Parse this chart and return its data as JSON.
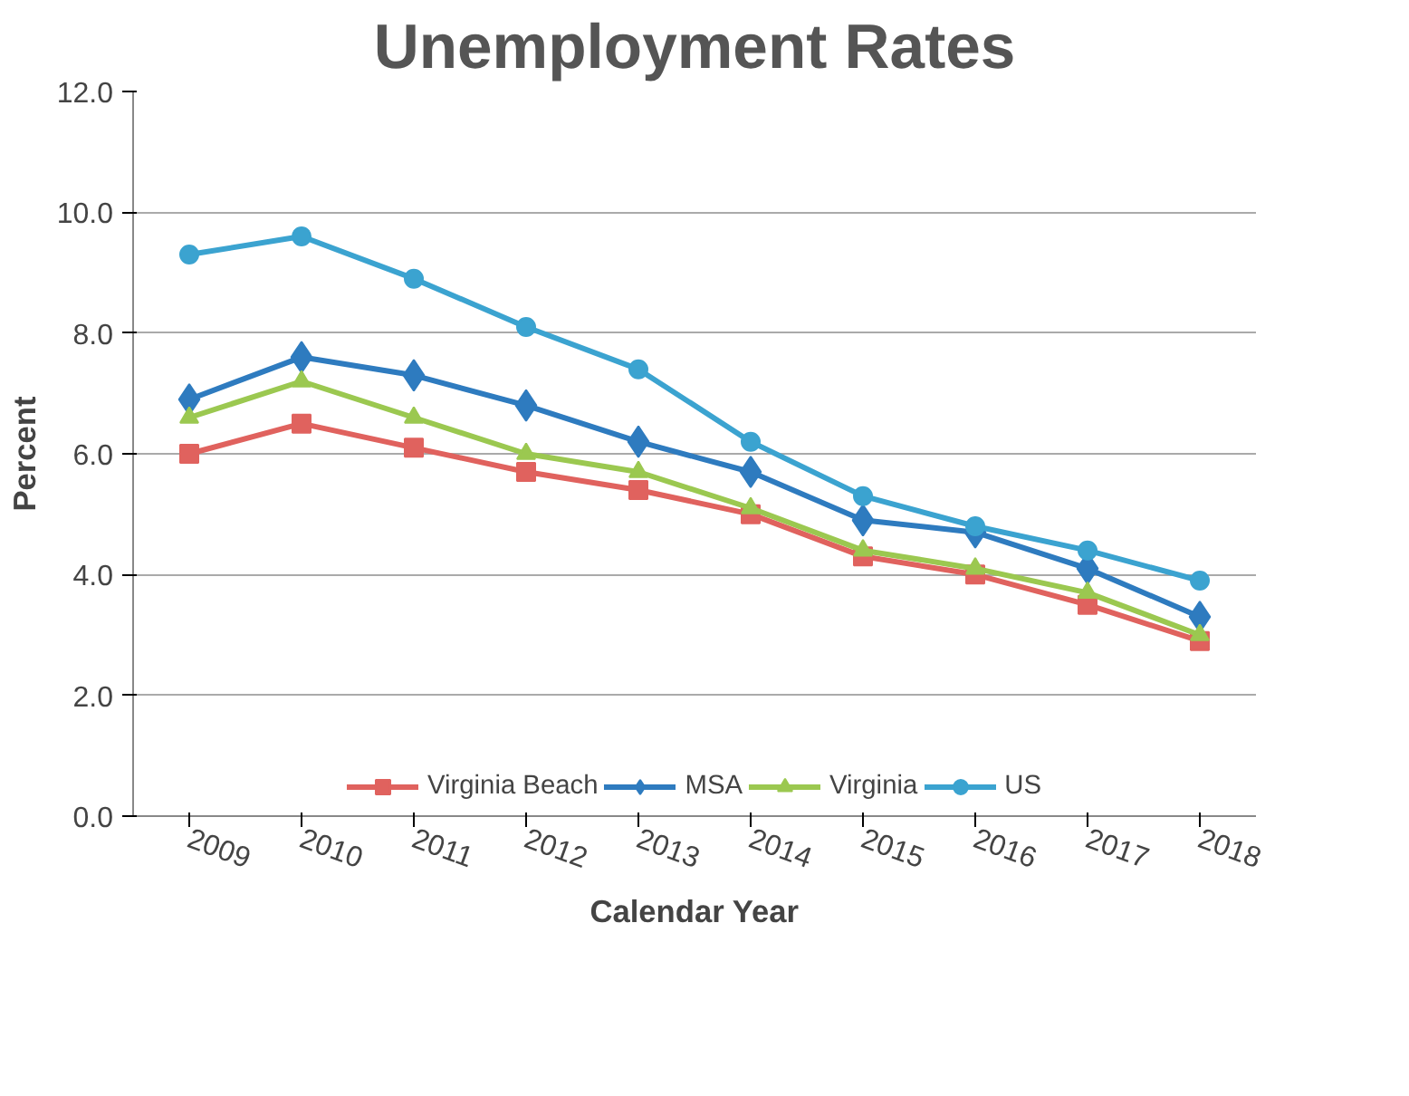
{
  "chart_data": {
    "type": "line",
    "title": "Unemployment Rates",
    "xlabel": "Calendar Year",
    "ylabel": "Percent",
    "categories": [
      "2009",
      "2010",
      "2011",
      "2012",
      "2013",
      "2014",
      "2015",
      "2016",
      "2017",
      "2018"
    ],
    "series": [
      {
        "name": "Virginia Beach",
        "color": "#e0625e",
        "marker": "square",
        "values": [
          6.0,
          6.5,
          6.1,
          5.7,
          5.4,
          5.0,
          4.3,
          4.0,
          3.5,
          2.9
        ]
      },
      {
        "name": "MSA",
        "color": "#2e7bbf",
        "marker": "diamond",
        "values": [
          6.9,
          7.6,
          7.3,
          6.8,
          6.2,
          5.7,
          4.9,
          4.7,
          4.1,
          3.3
        ]
      },
      {
        "name": "Virginia",
        "color": "#9bc850",
        "marker": "triangle",
        "values": [
          6.6,
          7.2,
          6.6,
          6.0,
          5.7,
          5.1,
          4.4,
          4.1,
          3.7,
          3.0
        ]
      },
      {
        "name": "US",
        "color": "#3ba3d0",
        "marker": "circle",
        "values": [
          9.3,
          9.6,
          8.9,
          8.1,
          7.4,
          6.2,
          5.3,
          4.8,
          4.4,
          3.9
        ]
      }
    ],
    "ylim": [
      0,
      12
    ],
    "yticks": [
      {
        "value": 0,
        "label": "0.0"
      },
      {
        "value": 2,
        "label": "2.0"
      },
      {
        "value": 4,
        "label": "4.0"
      },
      {
        "value": 6,
        "label": "6.0"
      },
      {
        "value": 8,
        "label": "8.0"
      },
      {
        "value": 10,
        "label": "10.0"
      },
      {
        "value": 12,
        "label": "12.0"
      }
    ],
    "grid": "y",
    "legend": "bottom",
    "line_style": "solid"
  }
}
